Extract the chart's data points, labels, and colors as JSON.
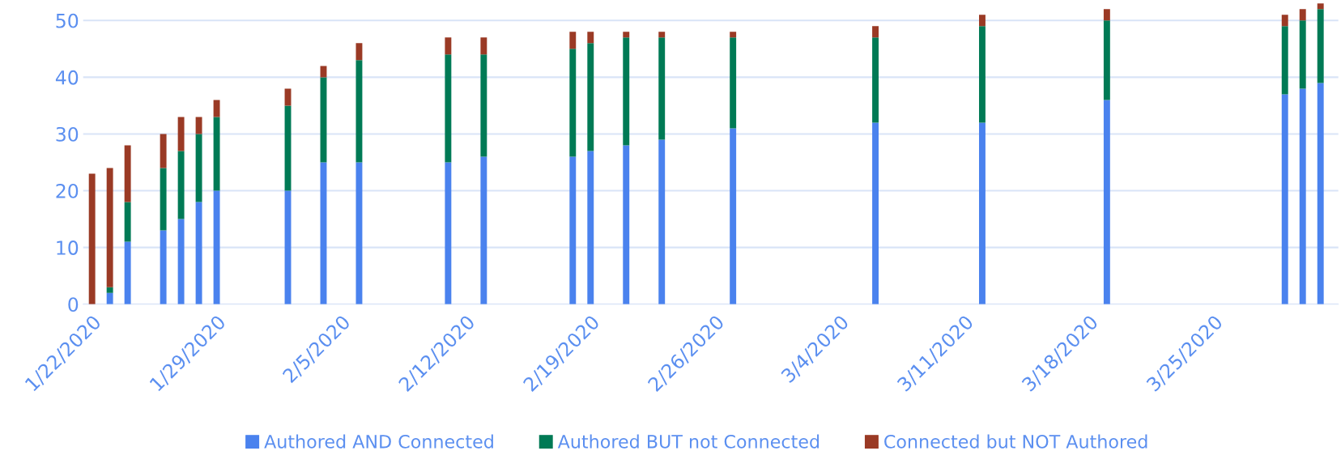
{
  "chart_data": {
    "type": "bar",
    "stacked": true,
    "x": [
      "2020-01-22",
      "2020-01-23",
      "2020-01-24",
      "2020-01-26",
      "2020-01-27",
      "2020-01-28",
      "2020-01-29",
      "2020-02-02",
      "2020-02-04",
      "2020-02-06",
      "2020-02-11",
      "2020-02-13",
      "2020-02-18",
      "2020-02-19",
      "2020-02-21",
      "2020-02-23",
      "2020-02-27",
      "2020-03-06",
      "2020-03-12",
      "2020-03-19",
      "2020-03-29",
      "2020-03-30",
      "2020-03-31"
    ],
    "series": [
      {
        "name": "Authored AND Connected",
        "color": "#4a82ee",
        "values": [
          0,
          2,
          11,
          13,
          15,
          18,
          20,
          20,
          25,
          25,
          25,
          26,
          26,
          27,
          28,
          29,
          31,
          32,
          32,
          36,
          37,
          38,
          39
        ]
      },
      {
        "name": "Authored BUT not Connected",
        "color": "#007a55",
        "values": [
          0,
          1,
          7,
          11,
          12,
          12,
          13,
          15,
          15,
          18,
          19,
          18,
          19,
          19,
          19,
          18,
          16,
          15,
          17,
          14,
          12,
          12,
          13
        ]
      },
      {
        "name": "Connected but NOT Authored",
        "color": "#9a3a25",
        "values": [
          23,
          21,
          10,
          6,
          6,
          3,
          3,
          3,
          2,
          3,
          3,
          3,
          3,
          2,
          1,
          1,
          1,
          2,
          2,
          2,
          2,
          2,
          1
        ]
      }
    ],
    "xlim": [
      "2020-01-21T12:00",
      "2020-04-01"
    ],
    "xticks": [
      {
        "value": "2020-01-22",
        "label": "1/22/2020"
      },
      {
        "value": "2020-01-29",
        "label": "1/29/2020"
      },
      {
        "value": "2020-02-05",
        "label": "2/5/2020"
      },
      {
        "value": "2020-02-12",
        "label": "2/12/2020"
      },
      {
        "value": "2020-02-19",
        "label": "2/19/2020"
      },
      {
        "value": "2020-02-26",
        "label": "2/26/2020"
      },
      {
        "value": "2020-03-04",
        "label": "3/4/2020"
      },
      {
        "value": "2020-03-11",
        "label": "3/11/2020"
      },
      {
        "value": "2020-03-18",
        "label": "3/18/2020"
      },
      {
        "value": "2020-03-25",
        "label": "3/25/2020"
      }
    ],
    "ylim": [
      0,
      53.2
    ],
    "yticks": [
      0,
      10,
      20,
      30,
      40,
      50
    ],
    "grid": "y",
    "legend": "bottom"
  }
}
